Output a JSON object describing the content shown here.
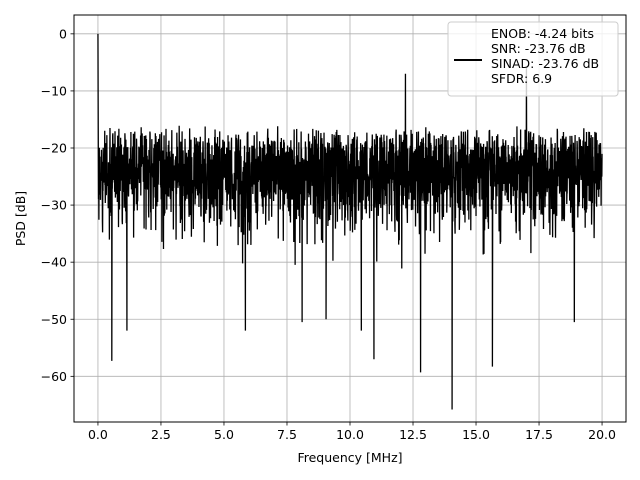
{
  "chart_data": {
    "type": "line",
    "xlabel": "Frequency [MHz]",
    "ylabel": "PSD [dB]",
    "xlim": [
      -0.95,
      20.95
    ],
    "ylim": [
      -68.0,
      3.3
    ],
    "xticks": [
      0.0,
      2.5,
      5.0,
      7.5,
      10.0,
      12.5,
      15.0,
      17.5,
      20.0
    ],
    "xtick_labels": [
      "0.0",
      "2.5",
      "5.0",
      "7.5",
      "10.0",
      "12.5",
      "15.0",
      "17.5",
      "20.0"
    ],
    "yticks": [
      0,
      -10,
      -20,
      -30,
      -40,
      -50,
      -60
    ],
    "ytick_labels": [
      "0",
      "−10",
      "−20",
      "−30",
      "−40",
      "−50",
      "−60"
    ],
    "grid": true,
    "legend_position": "top-right",
    "series": [
      {
        "name": "ENOB: -4.24 bits\nSNR: -23.76 dB\nSINAD: -23.76 dB\nSFDR: 6.9",
        "color": "#000000",
        "x_range": [
          0.0,
          20.0
        ],
        "noise_floor_band": [
          -30,
          -16
        ],
        "noise_max_envelope": -10,
        "noise_min_envelope": -42,
        "peaks": [
          {
            "x": 0.0,
            "y": 0.0
          },
          {
            "x": 12.2,
            "y": -7.0
          },
          {
            "x": 17.0,
            "y": -6.0
          }
        ],
        "dips": [
          {
            "x": 0.55,
            "y": -57.3
          },
          {
            "x": 1.15,
            "y": -52.0
          },
          {
            "x": 5.85,
            "y": -52.0
          },
          {
            "x": 8.1,
            "y": -50.5
          },
          {
            "x": 9.05,
            "y": -50.0
          },
          {
            "x": 10.45,
            "y": -52.0
          },
          {
            "x": 10.95,
            "y": -57.0
          },
          {
            "x": 12.8,
            "y": -59.3
          },
          {
            "x": 14.05,
            "y": -65.8
          },
          {
            "x": 15.65,
            "y": -58.3
          },
          {
            "x": 18.9,
            "y": -50.5
          }
        ]
      }
    ]
  }
}
